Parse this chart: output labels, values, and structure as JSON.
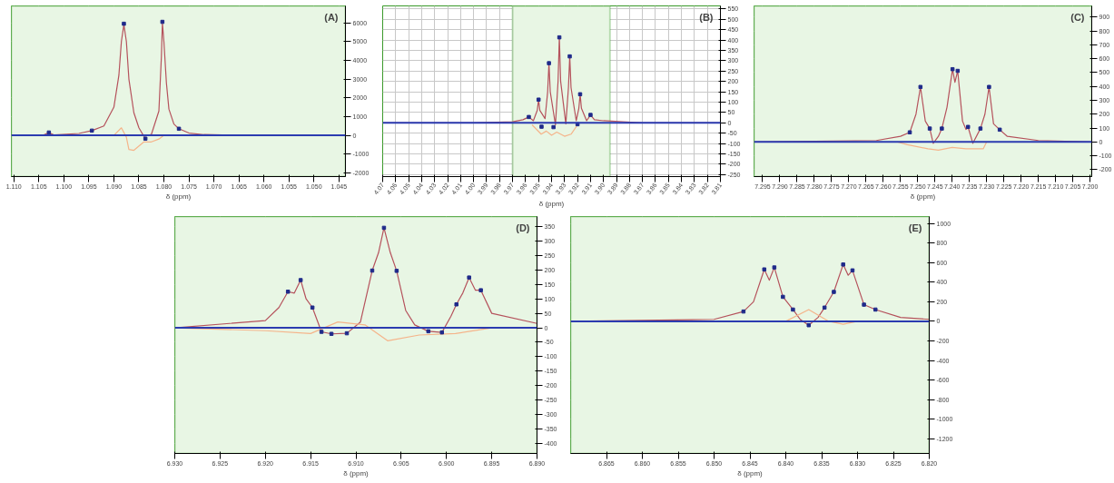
{
  "chart_data": [
    {
      "type": "line",
      "xlabel": "δ (ppm)",
      "annotations": [
        "(A)"
      ],
      "grid": true,
      "xlim": [
        1.1105,
        1.0437
      ],
      "xticks": [
        {
          "value": 1.11,
          "label": "1.110"
        },
        1.105,
        {
          "value": 1.1,
          "label": "1.100"
        },
        1.095,
        {
          "value": 1.09,
          "label": "1.090"
        },
        1.085,
        {
          "value": 1.08,
          "label": "1.080"
        },
        1.075,
        {
          "value": 1.07,
          "label": "1.070"
        },
        1.065,
        {
          "value": 1.06,
          "label": "1.060"
        },
        1.055,
        {
          "value": 1.05,
          "label": "1.050"
        },
        1.045
      ],
      "ylim": [
        -2200,
        6900
      ],
      "yticks": [
        -2000,
        -1000,
        0,
        1000,
        2000,
        3000,
        4000,
        5000,
        6000
      ],
      "bands": [
        {
          "axis": "x",
          "from": 1.1105,
          "to": 1.0437,
          "color": "#e8f6e4"
        }
      ],
      "ref_lines": [
        {
          "axis": "y",
          "value": 0,
          "color": "#2b3bb0"
        }
      ],
      "series": [
        {
          "color": "#b5525c",
          "x": [
            1.1105,
            1.104,
            1.103,
            1.102,
            1.097,
            1.0944,
            1.092,
            1.09,
            1.089,
            1.0885,
            1.088,
            1.0875,
            1.087,
            1.086,
            1.085,
            1.084,
            1.0825,
            1.081,
            1.0805,
            1.0803,
            1.08,
            1.0795,
            1.079,
            1.078,
            1.077,
            1.075,
            1.072,
            1.065,
            1.0437
          ],
          "values": [
            0,
            20,
            150,
            20,
            100,
            250,
            500,
            1500,
            3200,
            5000,
            5900,
            5000,
            3000,
            1200,
            400,
            -50,
            50,
            1300,
            4200,
            6000,
            5000,
            2800,
            1400,
            600,
            350,
            120,
            40,
            0,
            0
          ]
        },
        {
          "type": "line",
          "color": "#f5b48a",
          "x": [
            1.09,
            1.0885,
            1.0875,
            1.087,
            1.086,
            1.084,
            1.0825,
            1.081,
            1.08,
            1.079
          ],
          "values": [
            0,
            400,
            -100,
            -750,
            -800,
            -350,
            -350,
            -200,
            0,
            0
          ]
        },
        {
          "type": "scatter",
          "marker": "square",
          "color": "#1f2a8a",
          "x": [
            1.103,
            1.0944,
            1.088,
            1.0837,
            1.0803,
            1.077
          ],
          "values": [
            150,
            250,
            5950,
            -180,
            6050,
            350
          ]
        }
      ]
    },
    {
      "type": "line",
      "xlabel": "δ (ppm)",
      "annotations": [
        "(B)"
      ],
      "grid": true,
      "xlim": [
        4.07,
        3.81
      ],
      "xticks": [
        4.07,
        4.06,
        4.05,
        4.04,
        4.03,
        4.02,
        4.01,
        {
          "value": 4.0,
          "label": "4.00"
        },
        3.99,
        3.98,
        3.97,
        3.96,
        3.95,
        3.94,
        3.93,
        3.92,
        3.91,
        {
          "value": 3.9,
          "label": "3.90"
        },
        3.89,
        3.88,
        3.87,
        3.86,
        3.85,
        3.84,
        3.83,
        3.82,
        3.81
      ],
      "ylim": [
        -260,
        565
      ],
      "yticks": [
        -250,
        -200,
        -150,
        -100,
        -50,
        0,
        50,
        100,
        150,
        200,
        250,
        300,
        350,
        400,
        450,
        500,
        550
      ],
      "bands": [
        {
          "axis": "x",
          "from": 3.97,
          "to": 3.895,
          "color": "#e8f6e4"
        }
      ],
      "ref_lines": [
        {
          "axis": "y",
          "value": 0,
          "color": "#2b3bb0"
        }
      ],
      "series": [
        {
          "color": "#b5525c",
          "x": [
            4.07,
            4.0,
            3.97,
            3.962,
            3.9575,
            3.954,
            3.951,
            3.95,
            3.949,
            3.945,
            3.943,
            3.942,
            3.941,
            3.937,
            3.935,
            3.934,
            3.933,
            3.929,
            3.927,
            3.926,
            3.925,
            3.921,
            3.919,
            3.918,
            3.917,
            3.913,
            3.91,
            3.907,
            3.9,
            3.87,
            3.81
          ],
          "values": [
            0,
            0,
            5,
            15,
            28,
            10,
            60,
            112,
            60,
            20,
            150,
            288,
            150,
            -10,
            200,
            413,
            200,
            -5,
            170,
            321,
            170,
            10,
            70,
            138,
            70,
            10,
            38,
            15,
            10,
            0,
            0
          ]
        },
        {
          "type": "line",
          "color": "#f5b48a",
          "x": [
            3.955,
            3.948,
            3.944,
            3.94,
            3.936,
            3.93,
            3.925,
            3.92
          ],
          "values": [
            -10,
            -55,
            -40,
            -60,
            -45,
            -65,
            -55,
            -10
          ]
        },
        {
          "type": "scatter",
          "marker": "square",
          "color": "#1f2a8a",
          "x": [
            3.9575,
            3.95,
            3.9477,
            3.942,
            3.9385,
            3.934,
            3.926,
            3.92,
            3.918,
            3.91
          ],
          "values": [
            28,
            112,
            -19,
            288,
            -21,
            413,
            321,
            -7,
            138,
            38
          ]
        }
      ]
    },
    {
      "type": "line",
      "xlabel": "δ (ppm)",
      "annotations": [
        "(C)"
      ],
      "grid": true,
      "xlim": [
        7.2975,
        7.1995
      ],
      "xticks": [
        7.295,
        {
          "value": 7.29,
          "label": "7.290"
        },
        7.285,
        {
          "value": 7.28,
          "label": "7.280"
        },
        7.275,
        {
          "value": 7.27,
          "label": "7.270"
        },
        7.265,
        {
          "value": 7.26,
          "label": "7.260"
        },
        7.255,
        {
          "value": 7.25,
          "label": "7.250"
        },
        7.245,
        {
          "value": 7.24,
          "label": "7.240"
        },
        7.235,
        {
          "value": 7.23,
          "label": "7.230"
        },
        7.225,
        {
          "value": 7.22,
          "label": "7.220"
        },
        7.215,
        {
          "value": 7.21,
          "label": "7.210"
        },
        7.205,
        {
          "value": 7.2,
          "label": "7.200"
        }
      ],
      "ylim": [
        -250,
        980
      ],
      "yticks": [
        -200,
        -100,
        0,
        100,
        200,
        300,
        400,
        500,
        600,
        700,
        800,
        900
      ],
      "bands": [
        {
          "axis": "x",
          "from": 7.2975,
          "to": 7.1995,
          "color": "#e8f6e4"
        }
      ],
      "ref_lines": [
        {
          "axis": "y",
          "value": 0,
          "color": "#2b3bb0"
        }
      ],
      "series": [
        {
          "color": "#b5525c",
          "x": [
            7.2975,
            7.262,
            7.255,
            7.2523,
            7.2505,
            7.2492,
            7.2478,
            7.2465,
            7.2455,
            7.244,
            7.243,
            7.2415,
            7.2399,
            7.2392,
            7.2384,
            7.237,
            7.236,
            7.2354,
            7.234,
            7.2318,
            7.2305,
            7.2293,
            7.228,
            7.2262,
            7.224,
            7.215,
            7.1995
          ],
          "values": [
            0,
            10,
            40,
            69,
            200,
            396,
            150,
            96,
            -10,
            40,
            96,
            250,
            524,
            430,
            512,
            150,
            90,
            108,
            -10,
            96,
            200,
            396,
            130,
            88,
            40,
            10,
            0
          ]
        },
        {
          "type": "line",
          "color": "#f5b48a",
          "x": [
            7.256,
            7.253,
            7.247,
            7.244,
            7.24,
            7.236,
            7.231,
            7.23
          ],
          "values": [
            0,
            -20,
            -50,
            -60,
            -40,
            -50,
            -50,
            0
          ]
        },
        {
          "type": "scatter",
          "marker": "square",
          "color": "#1f2a8a",
          "x": [
            7.2523,
            7.2492,
            7.2465,
            7.243,
            7.2399,
            7.2384,
            7.2354,
            7.2318,
            7.2293,
            7.2262
          ],
          "values": [
            69,
            396,
            96,
            96,
            524,
            512,
            108,
            96,
            396,
            88
          ]
        }
      ]
    },
    {
      "type": "line",
      "xlabel": "δ (ppm)",
      "annotations": [
        "(D)"
      ],
      "grid": true,
      "xlim": [
        6.93,
        6.89
      ],
      "xticks": [
        {
          "value": 6.93,
          "label": "6.930"
        },
        6.925,
        {
          "value": 6.92,
          "label": "6.920"
        },
        6.915,
        {
          "value": 6.91,
          "label": "6.910"
        },
        6.905,
        {
          "value": 6.9,
          "label": "6.900"
        },
        6.895,
        {
          "value": 6.89,
          "label": "6.890"
        }
      ],
      "ylim": [
        -435,
        385
      ],
      "yticks": [
        -400,
        -350,
        -300,
        -250,
        -200,
        -150,
        -100,
        -50,
        0,
        50,
        100,
        150,
        200,
        250,
        300,
        350
      ],
      "bands": [
        {
          "axis": "x",
          "from": 6.93,
          "to": 6.89,
          "color": "#e8f6e4"
        }
      ],
      "ref_lines": [
        {
          "axis": "y",
          "value": 0,
          "color": "#2b3bb0"
        }
      ],
      "series": [
        {
          "color": "#b5525c",
          "x": [
            6.93,
            6.92,
            6.9185,
            6.9175,
            6.9168,
            6.9161,
            6.9155,
            6.9148,
            6.9138,
            6.9127,
            6.911,
            6.9095,
            6.9082,
            6.9075,
            6.9069,
            6.9062,
            6.9055,
            6.9045,
            6.9035,
            6.902,
            6.9005,
            6.8995,
            6.8989,
            6.8982,
            6.8975,
            6.8968,
            6.8962,
            6.895,
            6.89
          ],
          "values": [
            0,
            25,
            70,
            125,
            120,
            165,
            100,
            70,
            -14,
            -21,
            -19,
            20,
            198,
            260,
            346,
            260,
            197,
            60,
            10,
            -12,
            -16,
            40,
            81,
            120,
            174,
            130,
            130,
            50,
            15
          ]
        },
        {
          "type": "line",
          "color": "#f5b48a",
          "x": [
            6.93,
            6.92,
            6.915,
            6.912,
            6.909,
            6.9065,
            6.903,
            6.899,
            6.895,
            6.89
          ],
          "values": [
            0,
            -10,
            -20,
            20,
            10,
            -45,
            -25,
            -20,
            0,
            0
          ]
        },
        {
          "type": "scatter",
          "marker": "square",
          "color": "#1f2a8a",
          "x": [
            6.9175,
            6.9161,
            6.9148,
            6.9138,
            6.9127,
            6.911,
            6.9082,
            6.9069,
            6.9055,
            6.902,
            6.9005,
            6.8989,
            6.8975,
            6.8962
          ],
          "values": [
            125,
            165,
            70,
            -14,
            -21,
            -19,
            198,
            346,
            197,
            -12,
            -16,
            81,
            174,
            130
          ]
        }
      ]
    },
    {
      "type": "line",
      "xlabel": "δ (ppm)",
      "annotations": [
        "(E)"
      ],
      "grid": true,
      "xlim": [
        6.87,
        6.82
      ],
      "xticks": [
        6.865,
        {
          "value": 6.86,
          "label": "6.860"
        },
        6.855,
        {
          "value": 6.85,
          "label": "6.850"
        },
        6.845,
        {
          "value": 6.84,
          "label": "6.840"
        },
        6.835,
        {
          "value": 6.83,
          "label": "6.830"
        },
        6.825,
        {
          "value": 6.82,
          "label": "6.820"
        }
      ],
      "ylim": [
        -1350,
        1070
      ],
      "yticks": [
        -1200,
        -1000,
        -800,
        -600,
        -400,
        -200,
        0,
        200,
        400,
        600,
        800,
        1000
      ],
      "bands": [
        {
          "axis": "x",
          "from": 6.87,
          "to": 6.82,
          "color": "#e8f6e4"
        }
      ],
      "ref_lines": [
        {
          "axis": "y",
          "value": 0,
          "color": "#2b3bb0"
        }
      ],
      "series": [
        {
          "color": "#b5525c",
          "x": [
            6.87,
            6.85,
            6.8459,
            6.8445,
            6.843,
            6.8423,
            6.8416,
            6.8404,
            6.839,
            6.838,
            6.8368,
            6.8355,
            6.8346,
            6.8333,
            6.832,
            6.8313,
            6.8307,
            6.8291,
            6.8275,
            6.824,
            6.82
          ],
          "values": [
            0,
            20,
            100,
            200,
            530,
            420,
            550,
            250,
            120,
            20,
            -40,
            40,
            140,
            300,
            580,
            470,
            520,
            170,
            120,
            40,
            20
          ]
        },
        {
          "type": "line",
          "color": "#f5b48a",
          "x": [
            6.84,
            6.8368,
            6.834,
            6.832,
            6.83
          ],
          "values": [
            0,
            120,
            0,
            -30,
            0
          ]
        },
        {
          "type": "scatter",
          "marker": "square",
          "color": "#1f2a8a",
          "x": [
            6.8459,
            6.843,
            6.8416,
            6.8404,
            6.839,
            6.8368,
            6.8346,
            6.8333,
            6.832,
            6.8307,
            6.8291,
            6.8275
          ],
          "values": [
            100,
            530,
            550,
            250,
            120,
            -40,
            140,
            300,
            580,
            520,
            170,
            120
          ]
        }
      ]
    }
  ]
}
